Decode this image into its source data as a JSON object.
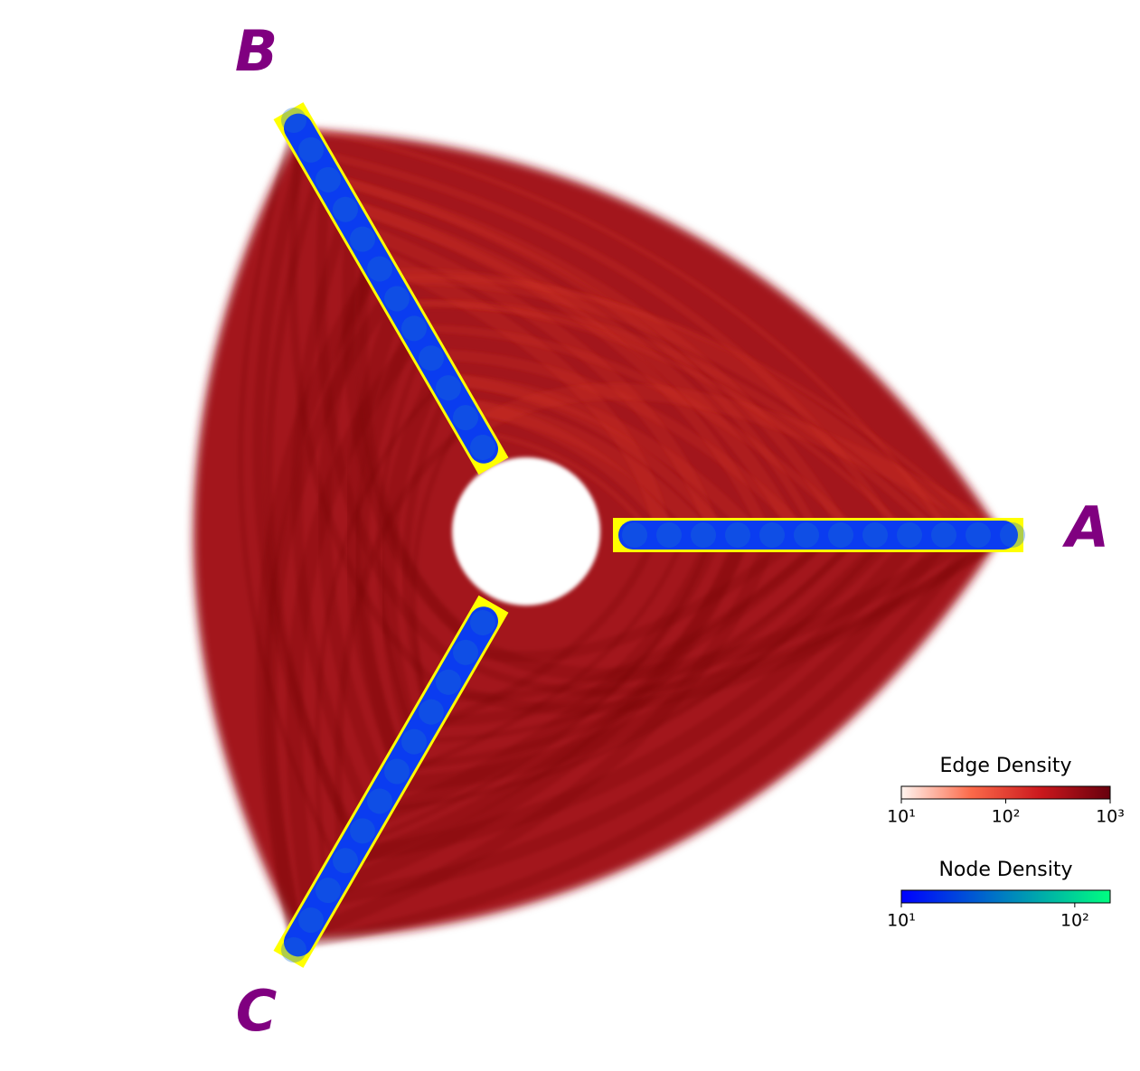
{
  "chart_data": {
    "type": "hive",
    "axes": [
      {
        "name": "A"
      },
      {
        "name": "B"
      },
      {
        "name": "C"
      }
    ],
    "axis_label_color": "#800080",
    "node_color": "#0a3cf0",
    "axis_highlight_color": "#ffff00",
    "edge_color": "#a3151a",
    "colorbars": [
      {
        "title": "Edge Density",
        "scale": "log",
        "colors": [
          "#fff5f0",
          "#fb6a4a",
          "#cb181d",
          "#67000d"
        ],
        "xlim": [
          10,
          1000
        ],
        "xticks": [
          {
            "value": 10,
            "label": "10¹"
          },
          {
            "value": 100,
            "label": "10²"
          },
          {
            "value": 1000,
            "label": "10³"
          }
        ]
      },
      {
        "title": "Node Density",
        "scale": "log",
        "colors": [
          "#0000ff",
          "#0080c0",
          "#00ff80"
        ],
        "xlim": [
          10,
          160
        ],
        "xticks": [
          {
            "value": 10,
            "label": "10¹"
          },
          {
            "value": 100,
            "label": "10²"
          }
        ]
      }
    ]
  }
}
